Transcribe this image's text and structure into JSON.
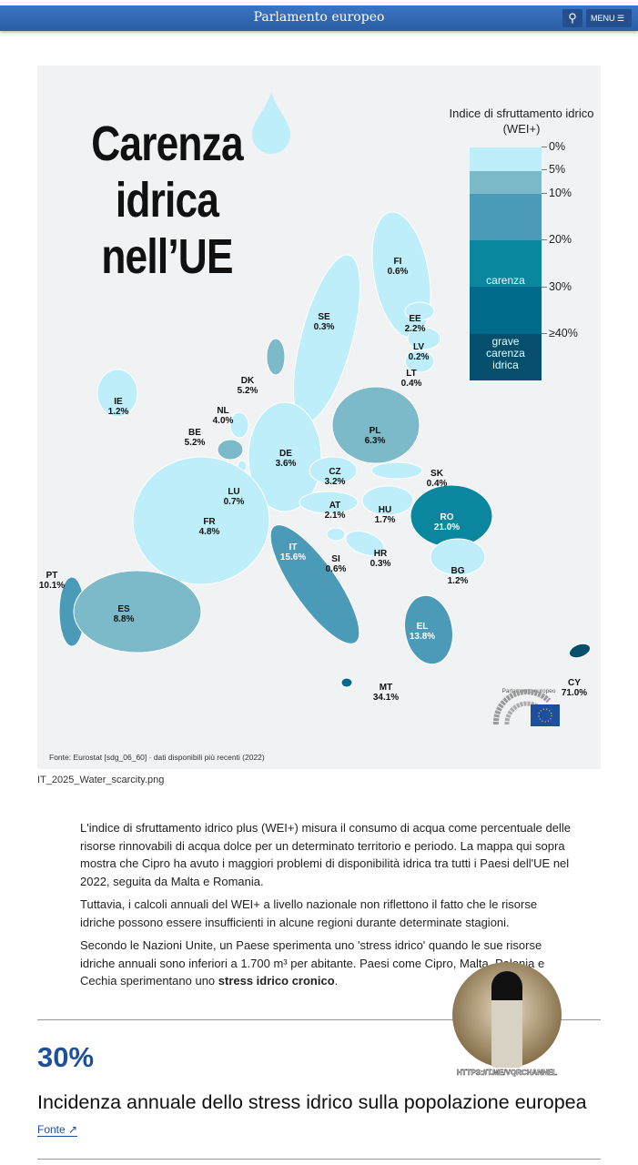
{
  "header": {
    "title": "Parlamento europeo",
    "search_icon": "search-icon",
    "menu_label": "MENU"
  },
  "map": {
    "title_lines": [
      "Carenza",
      "idrica",
      "nell’UE"
    ],
    "legend": {
      "title": "Indice di sfruttamento idrico (WEI+)",
      "ticks": [
        "0%",
        "5%",
        "10%",
        "20%",
        "30%",
        "≥40%"
      ],
      "band_labels": {
        "carenza": "carenza idrica",
        "grave": "grave carenza idrica"
      },
      "colors": [
        "#bdeefa",
        "#7cb9c9",
        "#4b9bb8",
        "#0b869f",
        "#006a8c",
        "#064f6c"
      ]
    },
    "countries": [
      {
        "code": "FI",
        "value": "0.6%",
        "cat": 0
      },
      {
        "code": "SE",
        "value": "0.3%",
        "cat": 0
      },
      {
        "code": "EE",
        "value": "2.2%",
        "cat": 0
      },
      {
        "code": "LV",
        "value": "0.2%",
        "cat": 0
      },
      {
        "code": "LT",
        "value": "0.4%",
        "cat": 0
      },
      {
        "code": "DK",
        "value": "5.2%",
        "cat": 1
      },
      {
        "code": "IE",
        "value": "1.2%",
        "cat": 0
      },
      {
        "code": "NL",
        "value": "4.0%",
        "cat": 0
      },
      {
        "code": "BE",
        "value": "5.2%",
        "cat": 1
      },
      {
        "code": "PL",
        "value": "6.3%",
        "cat": 1
      },
      {
        "code": "DE",
        "value": "3.6%",
        "cat": 0
      },
      {
        "code": "SK",
        "value": "0.4%",
        "cat": 0
      },
      {
        "code": "CZ",
        "value": "3.2%",
        "cat": 0
      },
      {
        "code": "LU",
        "value": "0.7%",
        "cat": 0
      },
      {
        "code": "AT",
        "value": "2.1%",
        "cat": 0
      },
      {
        "code": "HU",
        "value": "1.7%",
        "cat": 0
      },
      {
        "code": "RO",
        "value": "21.0%",
        "cat": 3
      },
      {
        "code": "FR",
        "value": "4.8%",
        "cat": 0
      },
      {
        "code": "IT",
        "value": "15.6%",
        "cat": 2
      },
      {
        "code": "SI",
        "value": "0.6%",
        "cat": 0
      },
      {
        "code": "HR",
        "value": "0.3%",
        "cat": 0
      },
      {
        "code": "BG",
        "value": "1.2%",
        "cat": 0
      },
      {
        "code": "PT",
        "value": "10.1%",
        "cat": 2
      },
      {
        "code": "ES",
        "value": "8.8%",
        "cat": 1
      },
      {
        "code": "EL",
        "value": "13.8%",
        "cat": 2
      },
      {
        "code": "MT",
        "value": "34.1%",
        "cat": 4
      },
      {
        "code": "CY",
        "value": "71.0%",
        "cat": 5
      }
    ],
    "source": "Fonte: Eurostat [sdg_06_60] · dati disponibili più recenti (2022)",
    "logo_text": "Parlamento europeo"
  },
  "caption": "IT_2025_Water_scarcity.png",
  "paragraphs": [
    "L'indice di sfruttamento idrico plus (WEI+) misura il consumo di acqua come percentuale delle risorse rinnovabili di acqua dolce per un determinato territorio e periodo. La mappa qui sopra mostra che Cipro ha avuto i maggiori problemi di disponibilità idrica tra tutti i Paesi dell'UE nel 2022, seguita da Malta e Romania.",
    "Tuttavia, i calcoli annuali del WEI+ a livello nazionale non riflettono il fatto che le risorse idriche possono essere insufficienti in alcune regioni durante determinate stagioni."
  ],
  "paragraph3": {
    "before": "Secondo le Nazioni Unite, un Paese sperimenta uno 'stress idrico' quando le sue risorse idriche annuali sono inferiori a 1.700 m³ per abitante. Paesi come Cipro, Malta, Polonia e Cechia sperimentano uno ",
    "bold": "stress idrico cronico",
    "after": "."
  },
  "stat": {
    "value": "30%",
    "label": "Incidenza annuale dello stress idrico sulla popolazione europea",
    "link": "Fonte"
  },
  "watermark": "HTTPS://T.ME/VQRCHANNEL"
}
